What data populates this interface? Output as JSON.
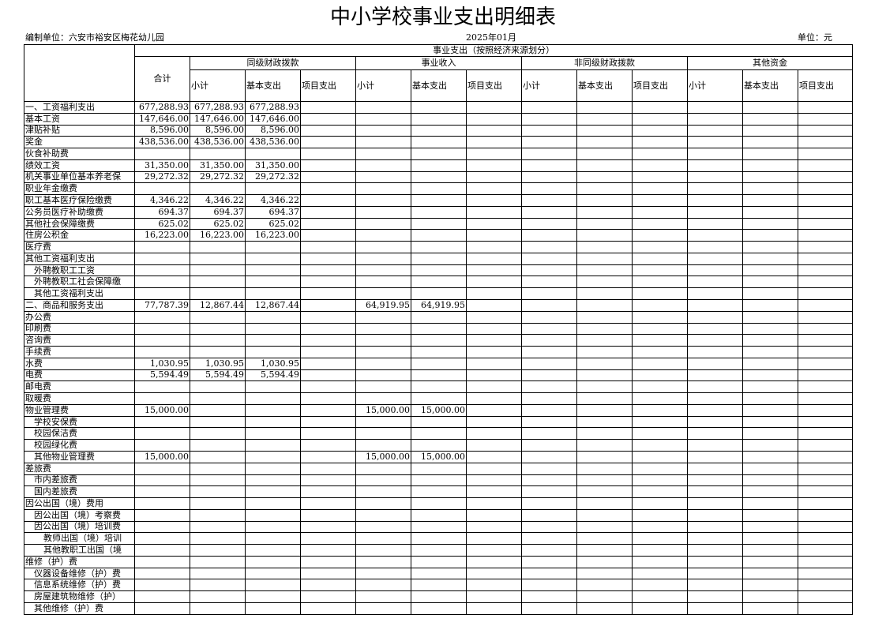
{
  "title": "中小学校事业支出明细表",
  "unit_org": "编制单位：六安市裕安区梅花幼儿园",
  "period": "2025年01月",
  "currency_unit": "单位：元",
  "header": {
    "top": "事业支出（按照经济来源划分）",
    "total": "合计",
    "groups": [
      "同级财政拨款",
      "事业收入",
      "非同级财政拨款",
      "其他资金"
    ],
    "subcols": [
      "小计",
      "基本支出",
      "项目支出"
    ]
  },
  "rows": [
    {
      "label": "一、工资福利支出",
      "indent": 0,
      "values": [
        "677,288.93",
        "677,288.93",
        "677,288.93",
        "",
        "",
        "",
        "",
        "",
        "",
        "",
        "",
        "",
        ""
      ]
    },
    {
      "label": "基本工资",
      "indent": 0,
      "values": [
        "147,646.00",
        "147,646.00",
        "147,646.00",
        "",
        "",
        "",
        "",
        "",
        "",
        "",
        "",
        "",
        ""
      ]
    },
    {
      "label": "津贴补贴",
      "indent": 0,
      "values": [
        "8,596.00",
        "8,596.00",
        "8,596.00",
        "",
        "",
        "",
        "",
        "",
        "",
        "",
        "",
        "",
        ""
      ]
    },
    {
      "label": "奖金",
      "indent": 0,
      "values": [
        "438,536.00",
        "438,536.00",
        "438,536.00",
        "",
        "",
        "",
        "",
        "",
        "",
        "",
        "",
        "",
        ""
      ]
    },
    {
      "label": "伙食补助费",
      "indent": 0,
      "values": [
        "",
        "",
        "",
        "",
        "",
        "",
        "",
        "",
        "",
        "",
        "",
        "",
        ""
      ]
    },
    {
      "label": "绩效工资",
      "indent": 0,
      "values": [
        "31,350.00",
        "31,350.00",
        "31,350.00",
        "",
        "",
        "",
        "",
        "",
        "",
        "",
        "",
        "",
        ""
      ]
    },
    {
      "label": "机关事业单位基本养老保",
      "indent": 0,
      "values": [
        "29,272.32",
        "29,272.32",
        "29,272.32",
        "",
        "",
        "",
        "",
        "",
        "",
        "",
        "",
        "",
        ""
      ]
    },
    {
      "label": "职业年金缴费",
      "indent": 0,
      "values": [
        "",
        "",
        "",
        "",
        "",
        "",
        "",
        "",
        "",
        "",
        "",
        "",
        ""
      ]
    },
    {
      "label": "职工基本医疗保险缴费",
      "indent": 0,
      "values": [
        "4,346.22",
        "4,346.22",
        "4,346.22",
        "",
        "",
        "",
        "",
        "",
        "",
        "",
        "",
        "",
        ""
      ]
    },
    {
      "label": "公务员医疗补助缴费",
      "indent": 0,
      "values": [
        "694.37",
        "694.37",
        "694.37",
        "",
        "",
        "",
        "",
        "",
        "",
        "",
        "",
        "",
        ""
      ]
    },
    {
      "label": "其他社会保障缴费",
      "indent": 0,
      "values": [
        "625.02",
        "625.02",
        "625.02",
        "",
        "",
        "",
        "",
        "",
        "",
        "",
        "",
        "",
        ""
      ]
    },
    {
      "label": "住房公积金",
      "indent": 0,
      "values": [
        "16,223.00",
        "16,223.00",
        "16,223.00",
        "",
        "",
        "",
        "",
        "",
        "",
        "",
        "",
        "",
        ""
      ]
    },
    {
      "label": "医疗费",
      "indent": 0,
      "values": [
        "",
        "",
        "",
        "",
        "",
        "",
        "",
        "",
        "",
        "",
        "",
        "",
        ""
      ]
    },
    {
      "label": "其他工资福利支出",
      "indent": 0,
      "values": [
        "",
        "",
        "",
        "",
        "",
        "",
        "",
        "",
        "",
        "",
        "",
        "",
        ""
      ]
    },
    {
      "label": "外聘教职工工资",
      "indent": 1,
      "values": [
        "",
        "",
        "",
        "",
        "",
        "",
        "",
        "",
        "",
        "",
        "",
        "",
        ""
      ]
    },
    {
      "label": "外聘教职工社会保障缴",
      "indent": 1,
      "values": [
        "",
        "",
        "",
        "",
        "",
        "",
        "",
        "",
        "",
        "",
        "",
        "",
        ""
      ]
    },
    {
      "label": "其他工资福利支出",
      "indent": 1,
      "values": [
        "",
        "",
        "",
        "",
        "",
        "",
        "",
        "",
        "",
        "",
        "",
        "",
        ""
      ]
    },
    {
      "label": "二、商品和服务支出",
      "indent": 0,
      "values": [
        "77,787.39",
        "12,867.44",
        "12,867.44",
        "",
        "64,919.95",
        "64,919.95",
        "",
        "",
        "",
        "",
        "",
        "",
        ""
      ]
    },
    {
      "label": "办公费",
      "indent": 0,
      "values": [
        "",
        "",
        "",
        "",
        "",
        "",
        "",
        "",
        "",
        "",
        "",
        "",
        ""
      ]
    },
    {
      "label": "印刷费",
      "indent": 0,
      "values": [
        "",
        "",
        "",
        "",
        "",
        "",
        "",
        "",
        "",
        "",
        "",
        "",
        ""
      ]
    },
    {
      "label": "咨询费",
      "indent": 0,
      "values": [
        "",
        "",
        "",
        "",
        "",
        "",
        "",
        "",
        "",
        "",
        "",
        "",
        ""
      ]
    },
    {
      "label": "手续费",
      "indent": 0,
      "values": [
        "",
        "",
        "",
        "",
        "",
        "",
        "",
        "",
        "",
        "",
        "",
        "",
        ""
      ]
    },
    {
      "label": "水费",
      "indent": 0,
      "values": [
        "1,030.95",
        "1,030.95",
        "1,030.95",
        "",
        "",
        "",
        "",
        "",
        "",
        "",
        "",
        "",
        ""
      ]
    },
    {
      "label": "电费",
      "indent": 0,
      "values": [
        "5,594.49",
        "5,594.49",
        "5,594.49",
        "",
        "",
        "",
        "",
        "",
        "",
        "",
        "",
        "",
        ""
      ]
    },
    {
      "label": "邮电费",
      "indent": 0,
      "values": [
        "",
        "",
        "",
        "",
        "",
        "",
        "",
        "",
        "",
        "",
        "",
        "",
        ""
      ]
    },
    {
      "label": "取暖费",
      "indent": 0,
      "values": [
        "",
        "",
        "",
        "",
        "",
        "",
        "",
        "",
        "",
        "",
        "",
        "",
        ""
      ]
    },
    {
      "label": "物业管理费",
      "indent": 0,
      "values": [
        "15,000.00",
        "",
        "",
        "",
        "15,000.00",
        "15,000.00",
        "",
        "",
        "",
        "",
        "",
        "",
        ""
      ]
    },
    {
      "label": "学校安保费",
      "indent": 1,
      "values": [
        "",
        "",
        "",
        "",
        "",
        "",
        "",
        "",
        "",
        "",
        "",
        "",
        ""
      ]
    },
    {
      "label": "校园保洁费",
      "indent": 1,
      "values": [
        "",
        "",
        "",
        "",
        "",
        "",
        "",
        "",
        "",
        "",
        "",
        "",
        ""
      ]
    },
    {
      "label": "校园绿化费",
      "indent": 1,
      "values": [
        "",
        "",
        "",
        "",
        "",
        "",
        "",
        "",
        "",
        "",
        "",
        "",
        ""
      ]
    },
    {
      "label": "其他物业管理费",
      "indent": 1,
      "values": [
        "15,000.00",
        "",
        "",
        "",
        "15,000.00",
        "15,000.00",
        "",
        "",
        "",
        "",
        "",
        "",
        ""
      ]
    },
    {
      "label": "差旅费",
      "indent": 0,
      "values": [
        "",
        "",
        "",
        "",
        "",
        "",
        "",
        "",
        "",
        "",
        "",
        "",
        ""
      ]
    },
    {
      "label": "市内差旅费",
      "indent": 1,
      "values": [
        "",
        "",
        "",
        "",
        "",
        "",
        "",
        "",
        "",
        "",
        "",
        "",
        ""
      ]
    },
    {
      "label": "国内差旅费",
      "indent": 1,
      "values": [
        "",
        "",
        "",
        "",
        "",
        "",
        "",
        "",
        "",
        "",
        "",
        "",
        ""
      ]
    },
    {
      "label": "因公出国（境）费用",
      "indent": 0,
      "values": [
        "",
        "",
        "",
        "",
        "",
        "",
        "",
        "",
        "",
        "",
        "",
        "",
        ""
      ]
    },
    {
      "label": "因公出国（境）考察费",
      "indent": 1,
      "values": [
        "",
        "",
        "",
        "",
        "",
        "",
        "",
        "",
        "",
        "",
        "",
        "",
        ""
      ]
    },
    {
      "label": "因公出国（境）培训费",
      "indent": 1,
      "values": [
        "",
        "",
        "",
        "",
        "",
        "",
        "",
        "",
        "",
        "",
        "",
        "",
        ""
      ]
    },
    {
      "label": "教师出国（境）培训",
      "indent": 2,
      "values": [
        "",
        "",
        "",
        "",
        "",
        "",
        "",
        "",
        "",
        "",
        "",
        "",
        ""
      ]
    },
    {
      "label": "其他教职工出国（境",
      "indent": 2,
      "values": [
        "",
        "",
        "",
        "",
        "",
        "",
        "",
        "",
        "",
        "",
        "",
        "",
        ""
      ]
    },
    {
      "label": "维修（护）费",
      "indent": 0,
      "values": [
        "",
        "",
        "",
        "",
        "",
        "",
        "",
        "",
        "",
        "",
        "",
        "",
        ""
      ]
    },
    {
      "label": "仪器设备维修（护）费",
      "indent": 1,
      "values": [
        "",
        "",
        "",
        "",
        "",
        "",
        "",
        "",
        "",
        "",
        "",
        "",
        ""
      ]
    },
    {
      "label": "信息系统维修（护）费",
      "indent": 1,
      "values": [
        "",
        "",
        "",
        "",
        "",
        "",
        "",
        "",
        "",
        "",
        "",
        "",
        ""
      ]
    },
    {
      "label": "房屋建筑物维修（护）",
      "indent": 1,
      "values": [
        "",
        "",
        "",
        "",
        "",
        "",
        "",
        "",
        "",
        "",
        "",
        "",
        ""
      ]
    },
    {
      "label": "其他维修（护）费",
      "indent": 1,
      "values": [
        "",
        "",
        "",
        "",
        "",
        "",
        "",
        "",
        "",
        "",
        "",
        "",
        ""
      ]
    }
  ]
}
